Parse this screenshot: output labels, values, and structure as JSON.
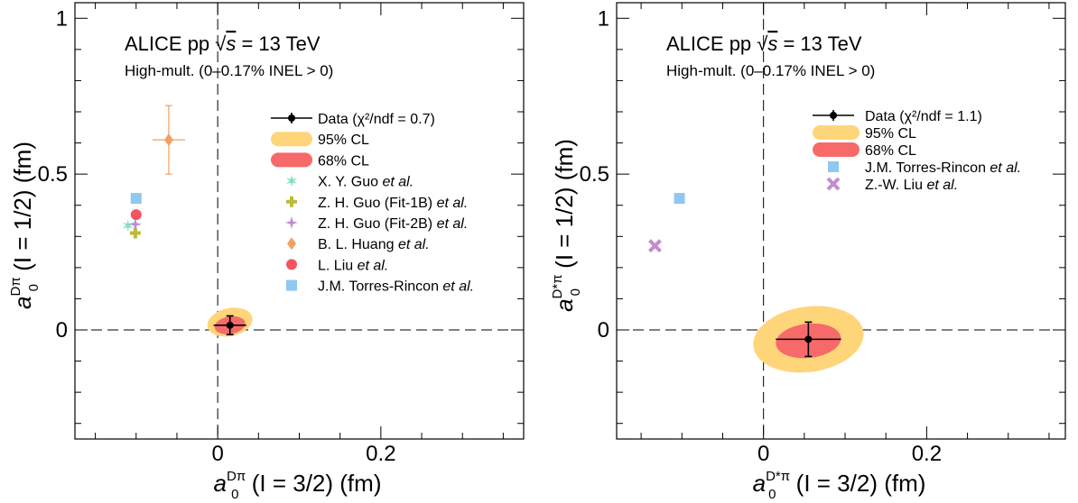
{
  "colors": {
    "data": "#000000",
    "cl95": "#ffd57a",
    "cl68": "#f76a6a",
    "guo_xy": "#7fe3c0",
    "guo_1b": "#bcbb3a",
    "guo_2b": "#c08bd6",
    "huang": "#f2a060",
    "liu_l": "#f4555f",
    "torres": "#8fc8f0",
    "liu_zw": "#c38bd0"
  },
  "chart_data": [
    {
      "type": "scatter",
      "title": "ALICE pp",
      "title_energy": "= 13 TeV",
      "subtitle": "High-mult. (0–0.17% INEL > 0)",
      "xlabel": {
        "sym": "a",
        "sub": "0",
        "sup": "Dπ",
        "text": " (I = 3/2) (fm)"
      },
      "ylabel": {
        "sym": "a",
        "sub": "0",
        "sup": "Dπ",
        "text": " (I = 1/2) (fm)"
      },
      "xlim": [
        -0.175,
        0.375
      ],
      "ylim": [
        -0.35,
        1.05
      ],
      "xticks": [
        "0",
        "0.2"
      ],
      "yticks": [
        "0",
        "0.5",
        "1"
      ],
      "legend_position": "right",
      "data": {
        "x": 0.015,
        "y": 0.015,
        "xerr": 0.02,
        "yerr": 0.03,
        "label": "Data (χ²/ndf = 0.7)"
      },
      "cl95": {
        "x": 0.015,
        "y": 0.025,
        "rx": 0.028,
        "ry": 0.045,
        "angle_deg": -12,
        "label": "95% CL"
      },
      "cl68": {
        "x": 0.015,
        "y": 0.015,
        "rx": 0.019,
        "ry": 0.028,
        "angle_deg": -10,
        "label": "68% CL"
      },
      "theory": [
        {
          "x": -0.11,
          "y": 0.335,
          "marker": "star6",
          "color": "guo_xy",
          "label": "X. Y. Guo",
          "label_it": "et al."
        },
        {
          "x": -0.101,
          "y": 0.311,
          "marker": "cross",
          "color": "guo_1b",
          "label": "Z. H. Guo (Fit-1B)",
          "label_it": "et al."
        },
        {
          "x": -0.101,
          "y": 0.339,
          "marker": "star4",
          "color": "guo_2b",
          "label": "Z. H. Guo (Fit-2B)",
          "label_it": "et al."
        },
        {
          "x": -0.06,
          "y": 0.61,
          "marker": "diamond",
          "color": "huang",
          "label": "B. L. Huang",
          "label_it": "et al.",
          "xerr": 0.02,
          "yerr": 0.11
        },
        {
          "x": -0.1,
          "y": 0.37,
          "marker": "circle",
          "color": "liu_l",
          "label": "L. Liu",
          "label_it": "et al."
        },
        {
          "x": -0.1,
          "y": 0.422,
          "marker": "square",
          "color": "torres",
          "label": "J.M. Torres-Rincon",
          "label_it": "et al."
        }
      ]
    },
    {
      "type": "scatter",
      "title": "ALICE pp",
      "title_energy": "= 13 TeV",
      "subtitle": "High-mult. (0–0.17% INEL > 0)",
      "xlabel": {
        "sym": "a",
        "sub": "0",
        "sup": "D*π",
        "text": " (I = 3/2) (fm)"
      },
      "ylabel": {
        "sym": "a",
        "sub": "0",
        "sup": "D*π",
        "text": " (I = 1/2) (fm)"
      },
      "xlim": [
        -0.18,
        0.37
      ],
      "ylim": [
        -0.35,
        1.05
      ],
      "xticks": [
        "0",
        "0.2"
      ],
      "yticks": [
        "0",
        "0.5",
        "1"
      ],
      "legend_position": "right",
      "data": {
        "x": 0.055,
        "y": -0.03,
        "xerr": 0.04,
        "yerr": 0.055,
        "label": "Data (χ²/ndf = 1.1)"
      },
      "cl95": {
        "x": 0.055,
        "y": -0.03,
        "rx": 0.068,
        "ry": 0.105,
        "angle_deg": -8,
        "label": "95% CL"
      },
      "cl68": {
        "x": 0.055,
        "y": -0.035,
        "rx": 0.04,
        "ry": 0.055,
        "angle_deg": -6,
        "label": "68% CL"
      },
      "theory": [
        {
          "x": -0.103,
          "y": 0.422,
          "marker": "square",
          "color": "torres",
          "label": "J.M. Torres-Rincon",
          "label_it": "et al."
        },
        {
          "x": -0.133,
          "y": 0.27,
          "marker": "xcross",
          "color": "liu_zw",
          "label": "Z.-W. Liu",
          "label_it": "et al."
        }
      ]
    }
  ]
}
